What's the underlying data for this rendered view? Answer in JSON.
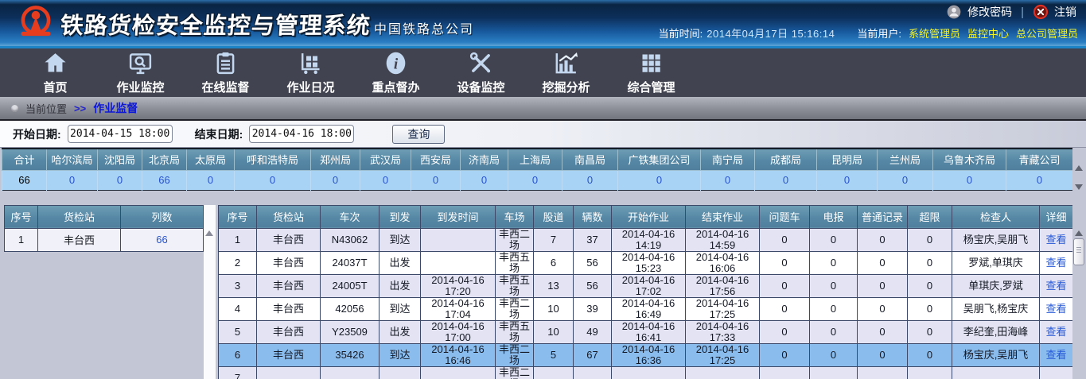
{
  "header": {
    "title": "铁路货检安全监控与管理系统",
    "subtitle": "中国铁路总公司",
    "change_password": "修改密码",
    "logout": "注销",
    "current_time_label": "当前时间:",
    "current_time": "2014年04月17日  15:16:14",
    "current_user_label": "当前用户:",
    "user_links": [
      "系统管理员",
      "监控中心",
      "总公司管理员"
    ]
  },
  "nav": {
    "items": [
      {
        "label": "首页",
        "icon": "home-icon"
      },
      {
        "label": "作业监控",
        "icon": "monitor-search-icon"
      },
      {
        "label": "在线监督",
        "icon": "clipboard-icon"
      },
      {
        "label": "作业日况",
        "icon": "cart-icon"
      },
      {
        "label": "重点督办",
        "icon": "info-icon"
      },
      {
        "label": "设备监控",
        "icon": "tools-icon"
      },
      {
        "label": "挖掘分析",
        "icon": "chart-icon"
      },
      {
        "label": "综合管理",
        "icon": "grid-icon"
      }
    ]
  },
  "breadcrumb": {
    "label": "当前位置",
    "separator": ">>",
    "current": "作业监督"
  },
  "filters": {
    "start_label": "开始日期:",
    "start_value": "2014-04-15 18:00",
    "end_label": "结束日期:",
    "end_value": "2014-04-16 18:00",
    "query_button": "查询"
  },
  "summary": {
    "columns": [
      {
        "name": "合计",
        "value": "66"
      },
      {
        "name": "哈尔滨局",
        "value": "0"
      },
      {
        "name": "沈阳局",
        "value": "0"
      },
      {
        "name": "北京局",
        "value": "66"
      },
      {
        "name": "太原局",
        "value": "0"
      },
      {
        "name": "呼和浩特局",
        "value": "0"
      },
      {
        "name": "郑州局",
        "value": "0"
      },
      {
        "name": "武汉局",
        "value": "0"
      },
      {
        "name": "西安局",
        "value": "0"
      },
      {
        "name": "济南局",
        "value": "0"
      },
      {
        "name": "上海局",
        "value": "0"
      },
      {
        "name": "南昌局",
        "value": "0"
      },
      {
        "name": "广铁集团公司",
        "value": "0"
      },
      {
        "name": "南宁局",
        "value": "0"
      },
      {
        "name": "成都局",
        "value": "0"
      },
      {
        "name": "昆明局",
        "value": "0"
      },
      {
        "name": "兰州局",
        "value": "0"
      },
      {
        "name": "乌鲁木齐局",
        "value": "0"
      },
      {
        "name": "青藏公司",
        "value": "0"
      }
    ]
  },
  "station_table": {
    "headers": [
      "序号",
      "货检站",
      "列数"
    ],
    "rows": [
      [
        "1",
        "丰台西",
        "66"
      ]
    ]
  },
  "worklist": {
    "headers": [
      "序号",
      "货检站",
      "车次",
      "到发",
      "到发时间",
      "车场",
      "股道",
      "辆数",
      "开始作业",
      "结束作业",
      "问题车",
      "电报",
      "普通记录",
      "超限",
      "检查人",
      "详细"
    ],
    "selected_index": 5,
    "rows": [
      {
        "seq": "1",
        "station": "丰台西",
        "train": "N43062",
        "type": "到达",
        "arr_time": "",
        "yard": "丰西二场",
        "track": "7",
        "cars": "37",
        "start": "2014-04-16 14:19",
        "end": "2014-04-16 14:59",
        "problem": "0",
        "telegram": "0",
        "record": "0",
        "overlimit": "0",
        "inspectors": "杨宝庆,吴朋飞",
        "view": "查看"
      },
      {
        "seq": "2",
        "station": "丰台西",
        "train": "24037T",
        "type": "出发",
        "arr_time": "",
        "yard": "丰西五场",
        "track": "6",
        "cars": "56",
        "start": "2014-04-16 15:23",
        "end": "2014-04-16 16:06",
        "problem": "0",
        "telegram": "0",
        "record": "0",
        "overlimit": "0",
        "inspectors": "罗斌,单琪庆",
        "view": "查看"
      },
      {
        "seq": "3",
        "station": "丰台西",
        "train": "24005T",
        "type": "出发",
        "arr_time": "2014-04-16 17:20",
        "yard": "丰西五场",
        "track": "13",
        "cars": "56",
        "start": "2014-04-16 17:02",
        "end": "2014-04-16 17:56",
        "problem": "0",
        "telegram": "0",
        "record": "0",
        "overlimit": "0",
        "inspectors": "单琪庆,罗斌",
        "view": "查看"
      },
      {
        "seq": "4",
        "station": "丰台西",
        "train": "42056",
        "type": "到达",
        "arr_time": "2014-04-16 17:04",
        "yard": "丰西二场",
        "track": "10",
        "cars": "39",
        "start": "2014-04-16 16:49",
        "end": "2014-04-16 17:25",
        "problem": "0",
        "telegram": "0",
        "record": "0",
        "overlimit": "0",
        "inspectors": "吴朋飞,杨宝庆",
        "view": "查看"
      },
      {
        "seq": "5",
        "station": "丰台西",
        "train": "Y23509",
        "type": "出发",
        "arr_time": "2014-04-16 17:00",
        "yard": "丰西五场",
        "track": "10",
        "cars": "49",
        "start": "2014-04-16 16:41",
        "end": "2014-04-16 17:33",
        "problem": "0",
        "telegram": "0",
        "record": "0",
        "overlimit": "0",
        "inspectors": "李纪奎,田海峰",
        "view": "查看"
      },
      {
        "seq": "6",
        "station": "丰台西",
        "train": "35426",
        "type": "到达",
        "arr_time": "2014-04-16 16:46",
        "yard": "丰西二场",
        "track": "5",
        "cars": "67",
        "start": "2014-04-16 16:36",
        "end": "2014-04-16 17:25",
        "problem": "0",
        "telegram": "0",
        "record": "0",
        "overlimit": "0",
        "inspectors": "杨宝庆,吴朋飞",
        "view": "查看"
      },
      {
        "seq": "7",
        "station": "",
        "train": "",
        "type": "",
        "arr_time": "",
        "yard": "丰西二场",
        "track": "",
        "cars": "",
        "start": "",
        "end": "",
        "problem": "",
        "telegram": "",
        "record": "",
        "overlimit": "",
        "inspectors": "",
        "view": ""
      }
    ]
  },
  "colors": {
    "header_blue": "#17599c",
    "nav_bg": "#414350",
    "table_header_teal": "#5688a5",
    "summary_value_blue": "#a9d3f4",
    "selected_row_blue": "#8abdee",
    "link_blue": "#2457d8",
    "user_link_yellow": "#f4f42a",
    "logout_red": "#e03024",
    "logo_red": "#e83c1e"
  }
}
